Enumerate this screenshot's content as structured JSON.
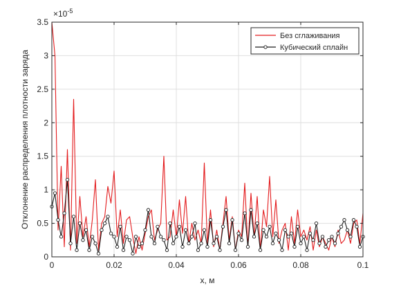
{
  "chart_data": {
    "type": "line",
    "xlabel": "x, м",
    "ylabel": "Отклонение распределения плотности заряда",
    "xlim": [
      0,
      0.1
    ],
    "ylim": [
      0,
      3.5
    ],
    "y_exponent_label": "×10",
    "y_exponent_power": "-5",
    "x_ticks": [
      {
        "value": 0,
        "label": "0"
      },
      {
        "value": 0.02,
        "label": "0.02"
      },
      {
        "value": 0.04,
        "label": "0.04"
      },
      {
        "value": 0.06,
        "label": "0.06"
      },
      {
        "value": 0.08,
        "label": "0.08"
      },
      {
        "value": 0.1,
        "label": "0.1"
      }
    ],
    "y_ticks": [
      {
        "value": 0,
        "label": "0"
      },
      {
        "value": 0.5,
        "label": "0.5"
      },
      {
        "value": 1,
        "label": "1"
      },
      {
        "value": 1.5,
        "label": "1.5"
      },
      {
        "value": 2,
        "label": "2"
      },
      {
        "value": 2.5,
        "label": "2.5"
      },
      {
        "value": 3,
        "label": "3"
      },
      {
        "value": 3.5,
        "label": "3.5"
      }
    ],
    "grid": true,
    "legend_position": "top-right",
    "series": [
      {
        "name": "Без сглаживания",
        "color": "#e31a1c",
        "marker": "none",
        "x": [
          0,
          0.001,
          0.002,
          0.003,
          0.004,
          0.005,
          0.006,
          0.007,
          0.008,
          0.009,
          0.01,
          0.011,
          0.012,
          0.013,
          0.014,
          0.015,
          0.016,
          0.017,
          0.018,
          0.019,
          0.02,
          0.021,
          0.022,
          0.023,
          0.024,
          0.025,
          0.026,
          0.027,
          0.028,
          0.029,
          0.03,
          0.031,
          0.032,
          0.033,
          0.034,
          0.035,
          0.036,
          0.037,
          0.038,
          0.039,
          0.04,
          0.041,
          0.042,
          0.043,
          0.044,
          0.045,
          0.046,
          0.047,
          0.048,
          0.049,
          0.05,
          0.051,
          0.052,
          0.053,
          0.054,
          0.055,
          0.056,
          0.057,
          0.058,
          0.059,
          0.06,
          0.061,
          0.062,
          0.063,
          0.064,
          0.065,
          0.066,
          0.067,
          0.068,
          0.069,
          0.07,
          0.071,
          0.072,
          0.073,
          0.074,
          0.075,
          0.076,
          0.077,
          0.078,
          0.079,
          0.08,
          0.081,
          0.082,
          0.083,
          0.084,
          0.085,
          0.086,
          0.087,
          0.088,
          0.089,
          0.09,
          0.091,
          0.092,
          0.093,
          0.094,
          0.095,
          0.096,
          0.097,
          0.098,
          0.099,
          0.1
        ],
        "y": [
          3.5,
          3.0,
          0.4,
          1.35,
          0.15,
          1.6,
          0.1,
          2.35,
          0.2,
          0.9,
          0.3,
          0.6,
          0.15,
          0.55,
          1.15,
          0.1,
          0.5,
          0.6,
          1.05,
          0.8,
          1.28,
          0.3,
          0.7,
          0.2,
          0.55,
          0.6,
          0.3,
          0.05,
          0.3,
          0.1,
          0.35,
          0.6,
          0.7,
          0.25,
          0.4,
          0.5,
          1.5,
          0.25,
          0.3,
          0.7,
          0.3,
          0.85,
          0.35,
          0.9,
          0.2,
          0.5,
          0.25,
          0.4,
          0.2,
          1.4,
          0.2,
          0.7,
          0.15,
          0.4,
          0.1,
          0.5,
          0.9,
          0.25,
          0.6,
          0.1,
          0.4,
          0.3,
          1.1,
          0.15,
          0.95,
          0.3,
          0.9,
          0.1,
          0.7,
          0.45,
          1.2,
          0.3,
          0.85,
          0.2,
          0.4,
          0.5,
          0.1,
          0.6,
          0.2,
          0.7,
          0.3,
          0.4,
          0.25,
          0.45,
          0.1,
          0.4,
          0.15,
          0.3,
          0.2,
          0.1,
          0.3,
          0.15,
          0.4,
          0.2,
          0.25,
          0.4,
          0.2,
          0.5,
          0.55,
          0.2,
          0.65
        ]
      },
      {
        "name": "Кубический сплайн",
        "color": "#1a1a1a",
        "marker": "circle",
        "x": [
          0,
          0.001,
          0.002,
          0.003,
          0.004,
          0.005,
          0.006,
          0.007,
          0.008,
          0.009,
          0.01,
          0.011,
          0.012,
          0.013,
          0.014,
          0.015,
          0.016,
          0.017,
          0.018,
          0.019,
          0.02,
          0.021,
          0.022,
          0.023,
          0.024,
          0.025,
          0.026,
          0.027,
          0.028,
          0.029,
          0.03,
          0.031,
          0.032,
          0.033,
          0.034,
          0.035,
          0.036,
          0.037,
          0.038,
          0.039,
          0.04,
          0.041,
          0.042,
          0.043,
          0.044,
          0.045,
          0.046,
          0.047,
          0.048,
          0.049,
          0.05,
          0.051,
          0.052,
          0.053,
          0.054,
          0.055,
          0.056,
          0.057,
          0.058,
          0.059,
          0.06,
          0.061,
          0.062,
          0.063,
          0.064,
          0.065,
          0.066,
          0.067,
          0.068,
          0.069,
          0.07,
          0.071,
          0.072,
          0.073,
          0.074,
          0.075,
          0.076,
          0.077,
          0.078,
          0.079,
          0.08,
          0.081,
          0.082,
          0.083,
          0.084,
          0.085,
          0.086,
          0.087,
          0.088,
          0.089,
          0.09,
          0.091,
          0.092,
          0.093,
          0.094,
          0.095,
          0.096,
          0.097,
          0.098,
          0.099,
          0.1
        ],
        "y": [
          0.75,
          0.95,
          0.55,
          0.3,
          0.65,
          1.15,
          0.2,
          0.6,
          0.1,
          0.5,
          0.25,
          0.4,
          0.1,
          0.3,
          0.2,
          0.05,
          0.4,
          0.5,
          0.6,
          0.35,
          0.3,
          0.15,
          0.45,
          0.1,
          0.3,
          0.25,
          0.05,
          0.3,
          0.15,
          0.2,
          0.4,
          0.7,
          0.3,
          0.2,
          0.45,
          0.3,
          0.25,
          0.1,
          0.5,
          0.2,
          0.3,
          0.45,
          0.15,
          0.4,
          0.2,
          0.3,
          0.5,
          0.1,
          0.2,
          0.4,
          0.15,
          0.55,
          0.2,
          0.3,
          0.1,
          0.45,
          0.7,
          0.2,
          0.55,
          0.1,
          0.35,
          0.25,
          0.65,
          0.15,
          0.7,
          0.3,
          0.5,
          0.1,
          0.4,
          0.3,
          0.45,
          0.2,
          0.35,
          0.25,
          0.1,
          0.4,
          0.3,
          0.35,
          0.15,
          0.45,
          0.2,
          0.3,
          0.1,
          0.35,
          0.25,
          0.5,
          0.2,
          0.3,
          0.15,
          0.25,
          0.3,
          0.2,
          0.35,
          0.45,
          0.55,
          0.4,
          0.3,
          0.55,
          0.45,
          0.15,
          0.3
        ]
      }
    ]
  }
}
